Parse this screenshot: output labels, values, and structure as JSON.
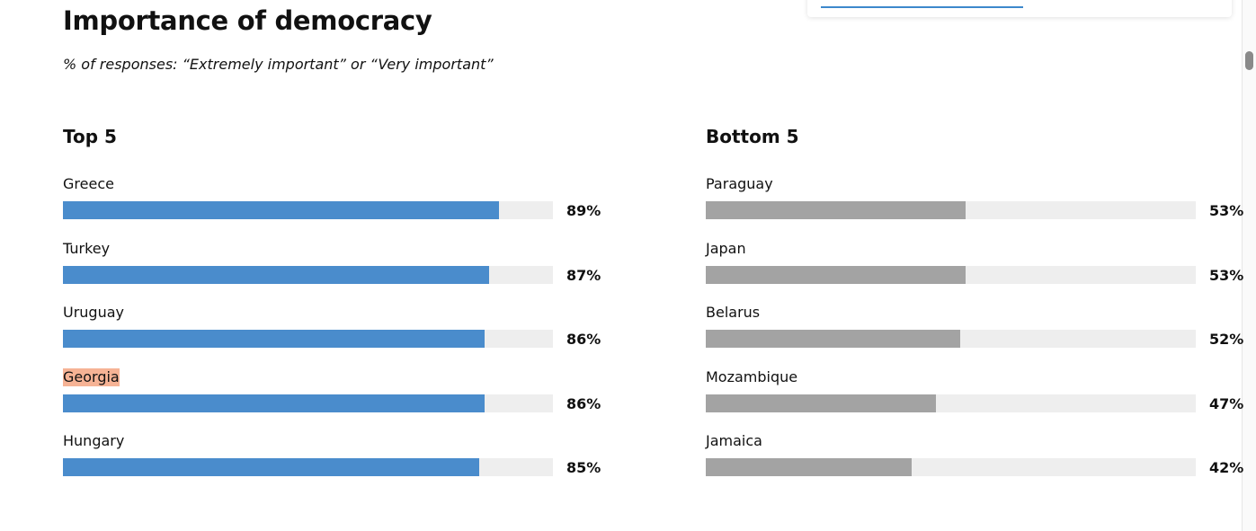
{
  "title": "Importance of democracy",
  "subtitle": "% of responses: “Extremely important” or “Very important”",
  "colors": {
    "top_bar": "#4a8ccc",
    "bottom_bar": "#a3a3a3",
    "track": "#eeeeee",
    "highlight": "#f6b395"
  },
  "chart_data": [
    {
      "type": "bar",
      "orientation": "horizontal",
      "title": "Top 5",
      "categories": [
        "Greece",
        "Turkey",
        "Uruguay",
        "Georgia",
        "Hungary"
      ],
      "values": [
        89,
        87,
        86,
        86,
        85
      ],
      "labels": [
        "89%",
        "87%",
        "86%",
        "86%",
        "85%"
      ],
      "highlighted": [
        "Georgia"
      ],
      "xlim": [
        0,
        100
      ],
      "grid": false
    },
    {
      "type": "bar",
      "orientation": "horizontal",
      "title": "Bottom 5",
      "categories": [
        "Paraguay",
        "Japan",
        "Belarus",
        "Mozambique",
        "Jamaica"
      ],
      "values": [
        53,
        53,
        52,
        47,
        42
      ],
      "labels": [
        "53%",
        "53%",
        "52%",
        "47%",
        "42%"
      ],
      "highlighted": [],
      "xlim": [
        0,
        100
      ],
      "grid": false
    }
  ]
}
